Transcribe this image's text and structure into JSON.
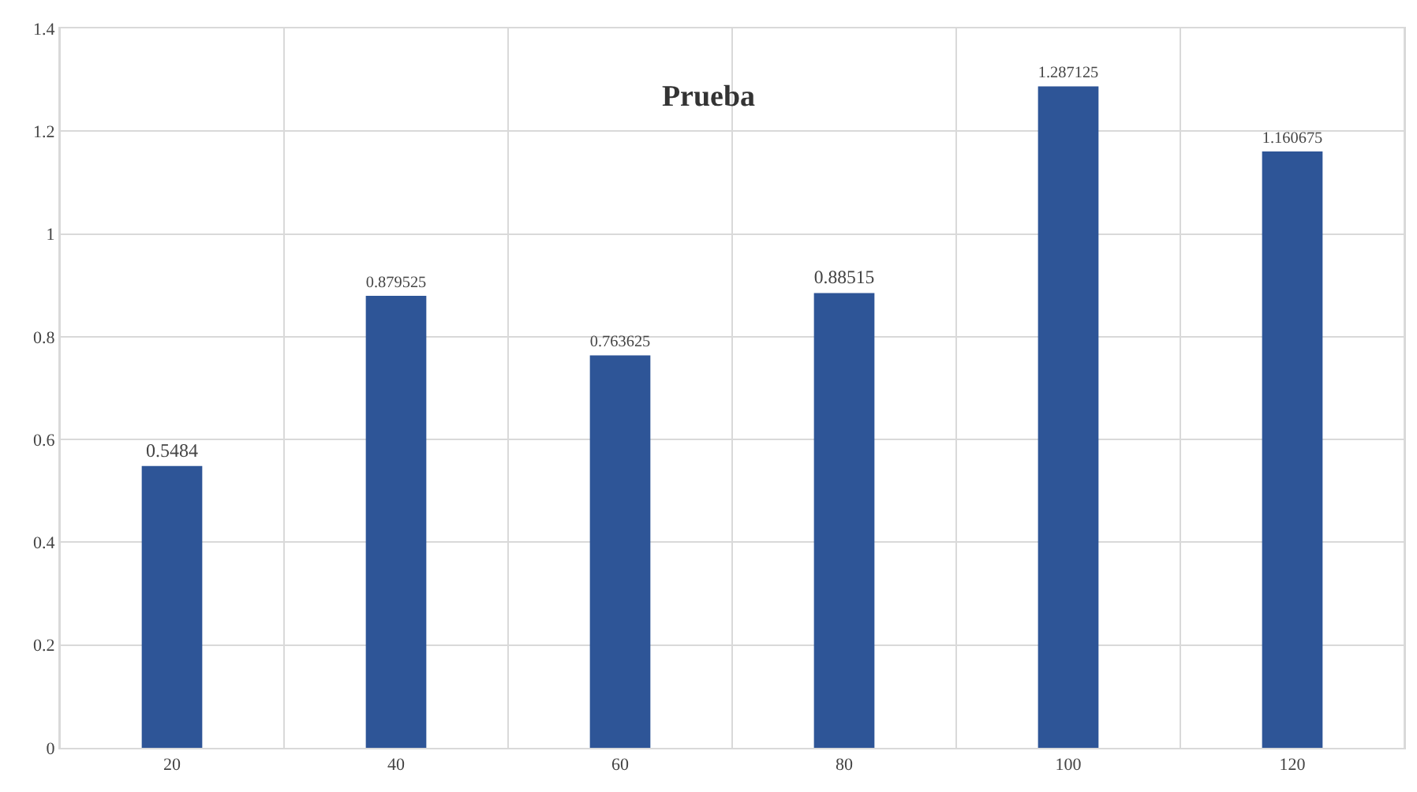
{
  "chart_data": {
    "type": "bar",
    "title": "Prueba",
    "categories": [
      "20",
      "40",
      "60",
      "80",
      "100",
      "120"
    ],
    "values": [
      0.5484,
      0.879525,
      0.763625,
      0.88515,
      1.287125,
      1.160675
    ],
    "color": "#2e5597",
    "ylim": [
      0,
      1.4
    ],
    "yticks": [
      0,
      0.2,
      0.4,
      0.6,
      0.8,
      1,
      1.2,
      1.4
    ],
    "grid": true,
    "data_labels": true
  }
}
